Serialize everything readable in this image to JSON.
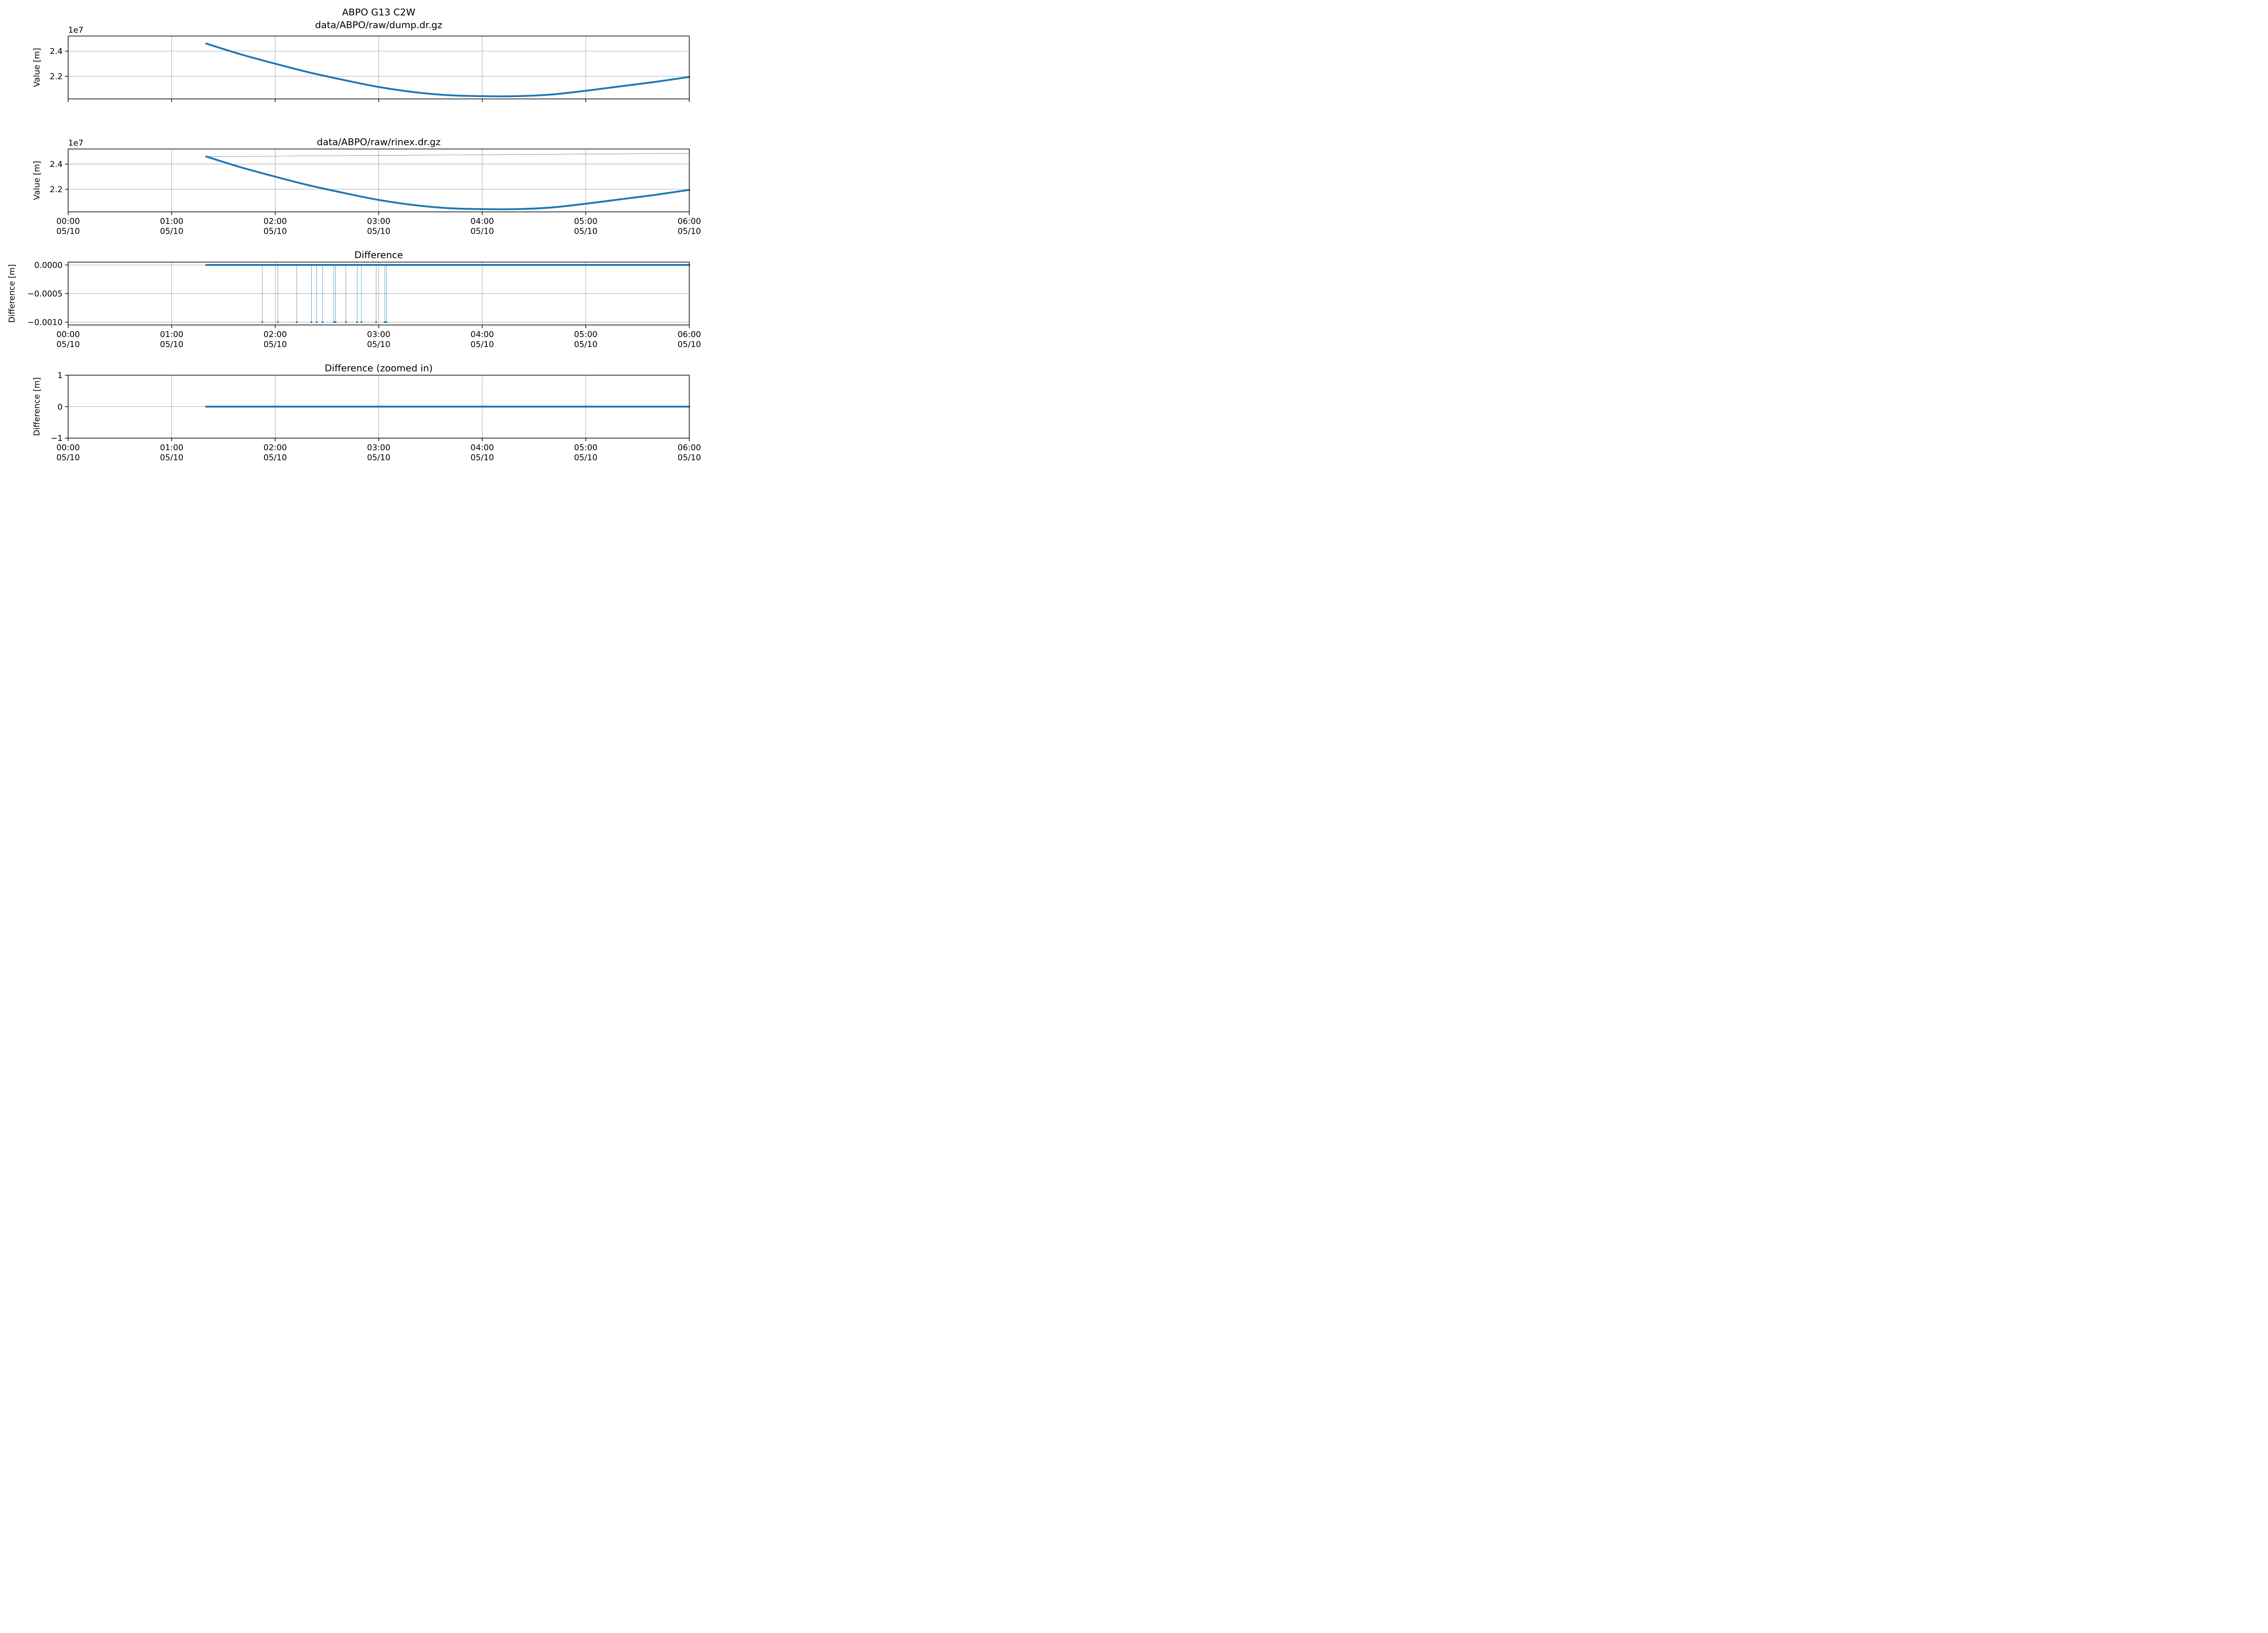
{
  "figure_title": "ABPO G13 C2W",
  "colors": {
    "series": "#1f77b4",
    "grid": "#b0b0b0",
    "axes": "#000000"
  },
  "chart_data": [
    {
      "type": "line",
      "title": "data/ABPO/raw/dump.dr.gz",
      "xlabel": "",
      "ylabel": "Value [m]",
      "offset_text": "1e7",
      "x_axis": "time",
      "xlim": [
        "2023-05-10 00:00",
        "2023-05-10 06:00"
      ],
      "x_ticks": [
        "2023-05-10 00:00",
        "2023-05-10 01:00",
        "2023-05-10 02:00",
        "2023-05-10 03:00",
        "2023-05-10 04:00",
        "2023-05-10 05:00",
        "2023-05-10 06:00"
      ],
      "x_tick_labels_visible": false,
      "ylim": [
        20.2,
        25.2
      ],
      "y_ticks": [
        22,
        24
      ],
      "y_tick_labels": [
        "2.2",
        "2.4"
      ],
      "grid": true,
      "series": [
        {
          "x": [
            "01:20",
            "01:40",
            "02:00",
            "02:20",
            "02:40",
            "03:00",
            "03:20",
            "03:40",
            "04:00",
            "04:20",
            "04:40",
            "05:00",
            "05:20",
            "05:40",
            "06:00"
          ],
          "values": [
            24.6,
            23.75,
            23.0,
            22.3,
            21.7,
            21.15,
            20.75,
            20.5,
            20.42,
            20.42,
            20.55,
            20.85,
            21.2,
            21.55,
            21.95
          ]
        }
      ]
    },
    {
      "type": "line",
      "title": "data/ABPO/raw/rinex.dr.gz",
      "xlabel": "",
      "ylabel": "Value [m]",
      "offset_text": "1e7",
      "x_axis": "time",
      "xlim": [
        "2023-05-10 00:00",
        "2023-05-10 06:00"
      ],
      "x_ticks": [
        "2023-05-10 00:00",
        "2023-05-10 01:00",
        "2023-05-10 02:00",
        "2023-05-10 03:00",
        "2023-05-10 04:00",
        "2023-05-10 05:00",
        "2023-05-10 06:00"
      ],
      "x_tick_labels": [
        [
          "00:00",
          "05/10"
        ],
        [
          "01:00",
          "05/10"
        ],
        [
          "02:00",
          "05/10"
        ],
        [
          "03:00",
          "05/10"
        ],
        [
          "04:00",
          "05/10"
        ],
        [
          "05:00",
          "05/10"
        ],
        [
          "06:00",
          "05/10"
        ]
      ],
      "ylim": [
        20.2,
        25.2
      ],
      "y_ticks": [
        22,
        24
      ],
      "y_tick_labels": [
        "2.2",
        "2.4"
      ],
      "grid": true,
      "series": [
        {
          "x": [
            "01:20",
            "01:40",
            "02:00",
            "02:20",
            "02:40",
            "03:00",
            "03:20",
            "03:40",
            "04:00",
            "04:20",
            "04:40",
            "05:00",
            "05:20",
            "05:40",
            "06:00"
          ],
          "values": [
            24.6,
            23.75,
            23.0,
            22.3,
            21.7,
            21.15,
            20.75,
            20.5,
            20.42,
            20.42,
            20.55,
            20.85,
            21.2,
            21.55,
            21.95
          ]
        },
        {
          "style": "thin",
          "x": [
            "01:20",
            "06:00"
          ],
          "values": [
            24.6,
            24.85
          ]
        }
      ]
    },
    {
      "type": "line",
      "title": "Difference",
      "xlabel": "",
      "ylabel": "Difference [m]",
      "x_axis": "time",
      "xlim": [
        "2023-05-10 00:00",
        "2023-05-10 06:00"
      ],
      "x_ticks": [
        "2023-05-10 00:00",
        "2023-05-10 01:00",
        "2023-05-10 02:00",
        "2023-05-10 03:00",
        "2023-05-10 04:00",
        "2023-05-10 05:00",
        "2023-05-10 06:00"
      ],
      "x_tick_labels": [
        [
          "00:00",
          "05/10"
        ],
        [
          "01:00",
          "05/10"
        ],
        [
          "02:00",
          "05/10"
        ],
        [
          "03:00",
          "05/10"
        ],
        [
          "04:00",
          "05/10"
        ],
        [
          "05:00",
          "05/10"
        ],
        [
          "06:00",
          "05/10"
        ]
      ],
      "ylim": [
        -0.00105,
        5e-05
      ],
      "y_ticks": [
        0.0,
        -0.0005,
        -0.001
      ],
      "y_tick_labels": [
        "0.0000",
        "−0.0005",
        "−0.0010"
      ],
      "grid": true,
      "series": [
        {
          "x_range": [
            "01:20",
            "06:00"
          ],
          "value": 0.0
        },
        {
          "style": "spikes",
          "x": [
            "01:52:30",
            "02:01:30",
            "02:12:30",
            "02:21:00",
            "02:24:00",
            "02:27:30",
            "02:34:00",
            "02:35:00",
            "02:41:00",
            "02:47:30",
            "02:50:00",
            "02:58:30",
            "03:03:30",
            "03:04:30"
          ],
          "values": [
            -0.001,
            -0.001,
            -0.001,
            -0.001,
            -0.001,
            -0.001,
            -0.001,
            -0.001,
            -0.001,
            -0.001,
            -0.001,
            -0.001,
            -0.001,
            -0.001
          ]
        }
      ]
    },
    {
      "type": "line",
      "title": "Difference (zoomed in)",
      "xlabel": "",
      "ylabel": "Difference [m]",
      "x_axis": "time",
      "xlim": [
        "2023-05-10 00:00",
        "2023-05-10 06:00"
      ],
      "x_ticks": [
        "2023-05-10 00:00",
        "2023-05-10 01:00",
        "2023-05-10 02:00",
        "2023-05-10 03:00",
        "2023-05-10 04:00",
        "2023-05-10 05:00",
        "2023-05-10 06:00"
      ],
      "x_tick_labels": [
        [
          "00:00",
          "05/10"
        ],
        [
          "01:00",
          "05/10"
        ],
        [
          "02:00",
          "05/10"
        ],
        [
          "03:00",
          "05/10"
        ],
        [
          "04:00",
          "05/10"
        ],
        [
          "05:00",
          "05/10"
        ],
        [
          "06:00",
          "05/10"
        ]
      ],
      "ylim": [
        -1,
        1
      ],
      "y_ticks": [
        1,
        0,
        -1
      ],
      "y_tick_labels": [
        "1",
        "0",
        "−1"
      ],
      "grid": true,
      "series": [
        {
          "x_range": [
            "01:20",
            "06:00"
          ],
          "value": 0
        }
      ]
    }
  ]
}
